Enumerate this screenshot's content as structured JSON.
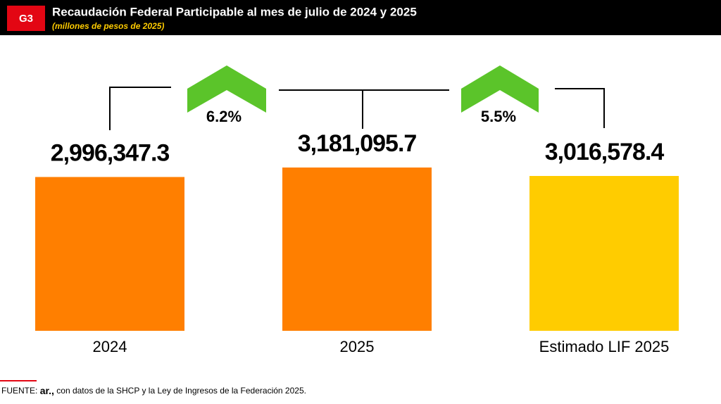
{
  "chart_data": {
    "type": "bar",
    "badge": "G3",
    "title": "Recaudación Federal Participable al mes de julio de 2024 y 2025",
    "subtitle": "(millones de pesos de 2025)",
    "categories": [
      "2024",
      "2025",
      "Estimado LIF 2025"
    ],
    "values": [
      2996347.3,
      3181095.7,
      3016578.4
    ],
    "value_labels": [
      "2,996,347.3",
      "3,181,095.7",
      "3,016,578.4"
    ],
    "colors": [
      "#ff7f00",
      "#ff7f00",
      "#ffcc00"
    ],
    "annotations": [
      "6.2%",
      "5.5%"
    ],
    "source": [
      "FUENTE:",
      "ar.,",
      "con datos de la SHCP y la Ley de Ingresos de la Federación 2025."
    ]
  }
}
